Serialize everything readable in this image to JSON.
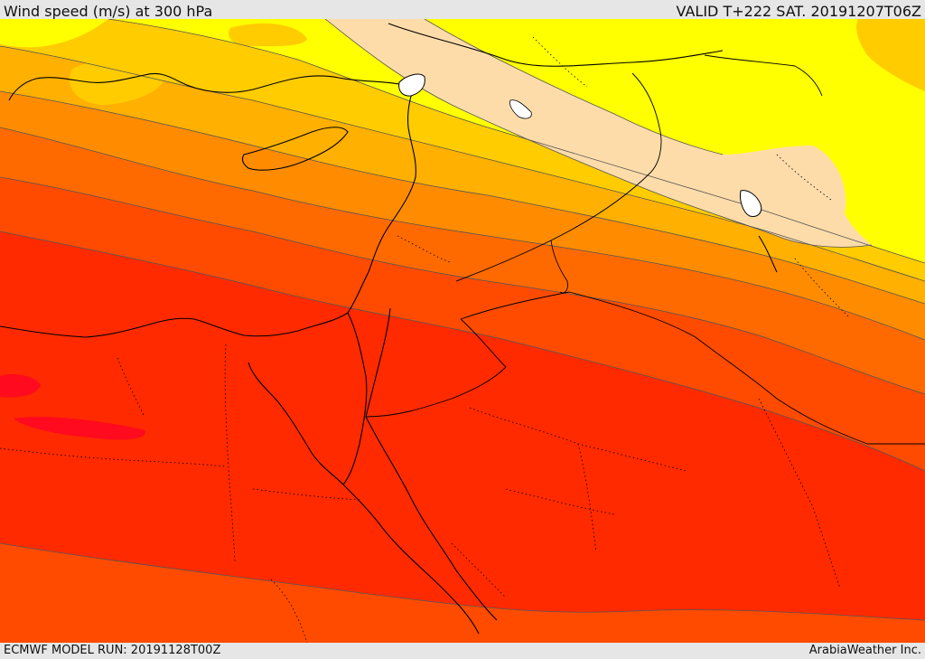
{
  "header": {
    "title": "Wind speed (m/s) at 300 hPa",
    "valid": "VALID T+222 SAT. 20191207T06Z"
  },
  "footer": {
    "model_run": "ECMWF MODEL RUN: 20191128T00Z",
    "brand": "ArabiaWeather Inc."
  },
  "colors": {
    "band_light_yellow": "#ffff33",
    "band_yellow": "#ffff00",
    "band_gold": "#ffcc00",
    "band_amber": "#ffb000",
    "band_orange": "#ff8c00",
    "band_dark_orange": "#ff6a00",
    "band_red_orange": "#ff4b00",
    "band_red": "#ff2a00",
    "band_deep_red": "#ff0a1e",
    "jet_core": "#fedcaa",
    "lake": "#ffffff",
    "border": "#000000",
    "contour": "#555555"
  }
}
